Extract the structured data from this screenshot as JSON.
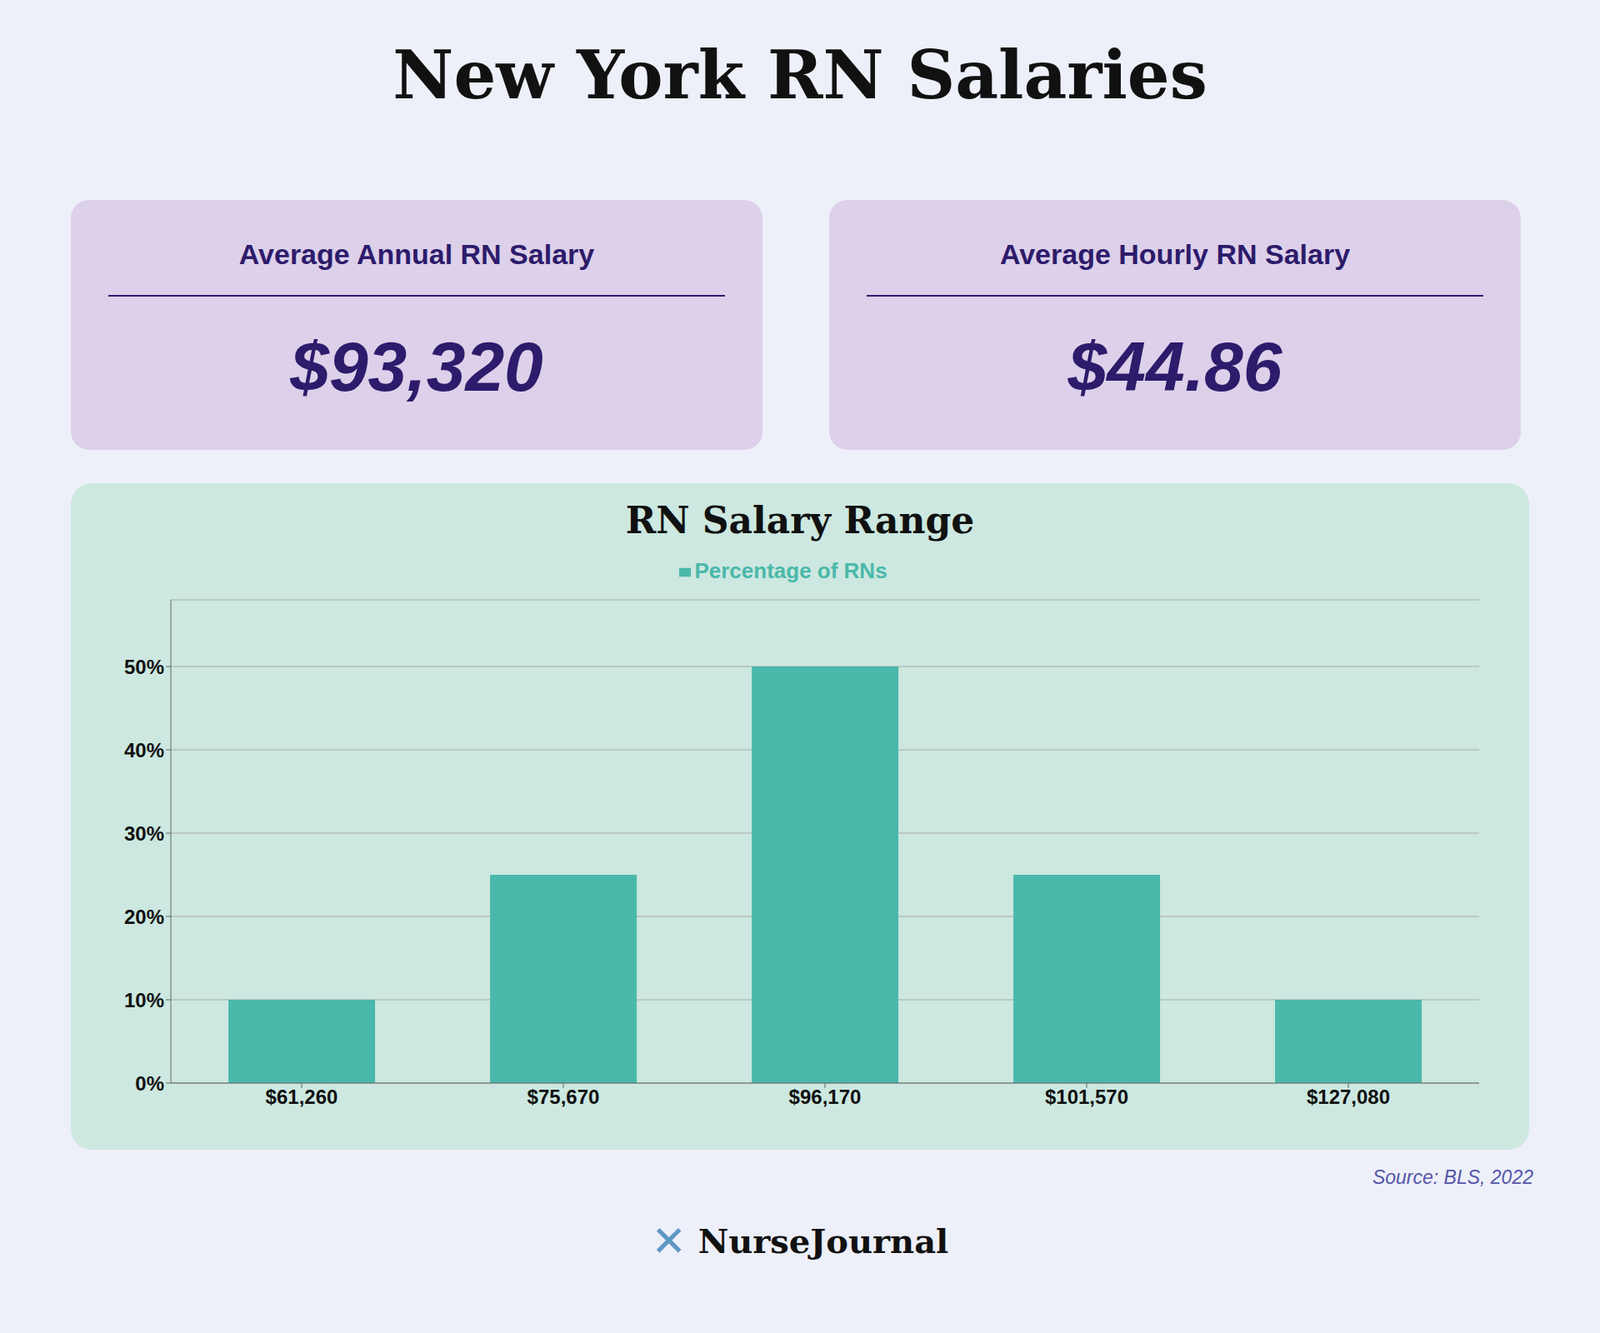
{
  "chart_data": {
    "type": "bar",
    "title": "New York RN Salaries",
    "subtitle": "RN Salary Range",
    "categories": [
      "$61,260",
      "$75,670",
      "$96,170",
      "$101,570",
      "$127,080"
    ],
    "series": [
      {
        "name": "Percentage of RNs",
        "color": "#4ab8aa",
        "values": [
          10,
          25,
          50,
          25,
          10
        ]
      }
    ],
    "ylim": [
      0,
      58
    ],
    "yticks": [
      {
        "value": 0,
        "label": "0%"
      },
      {
        "value": 10,
        "label": "10%"
      },
      {
        "value": 20,
        "label": "20%"
      },
      {
        "value": 30,
        "label": "30%"
      },
      {
        "value": 40,
        "label": "40%"
      },
      {
        "value": 50,
        "label": "50%"
      }
    ],
    "grid": true,
    "legend": "top",
    "annotations": [
      "Average Annual RN Salary",
      "$93,320",
      "Average Hourly RN Salary",
      "$44.86",
      "Source: BLS, 2022",
      "✕",
      "NurseJournal"
    ]
  }
}
